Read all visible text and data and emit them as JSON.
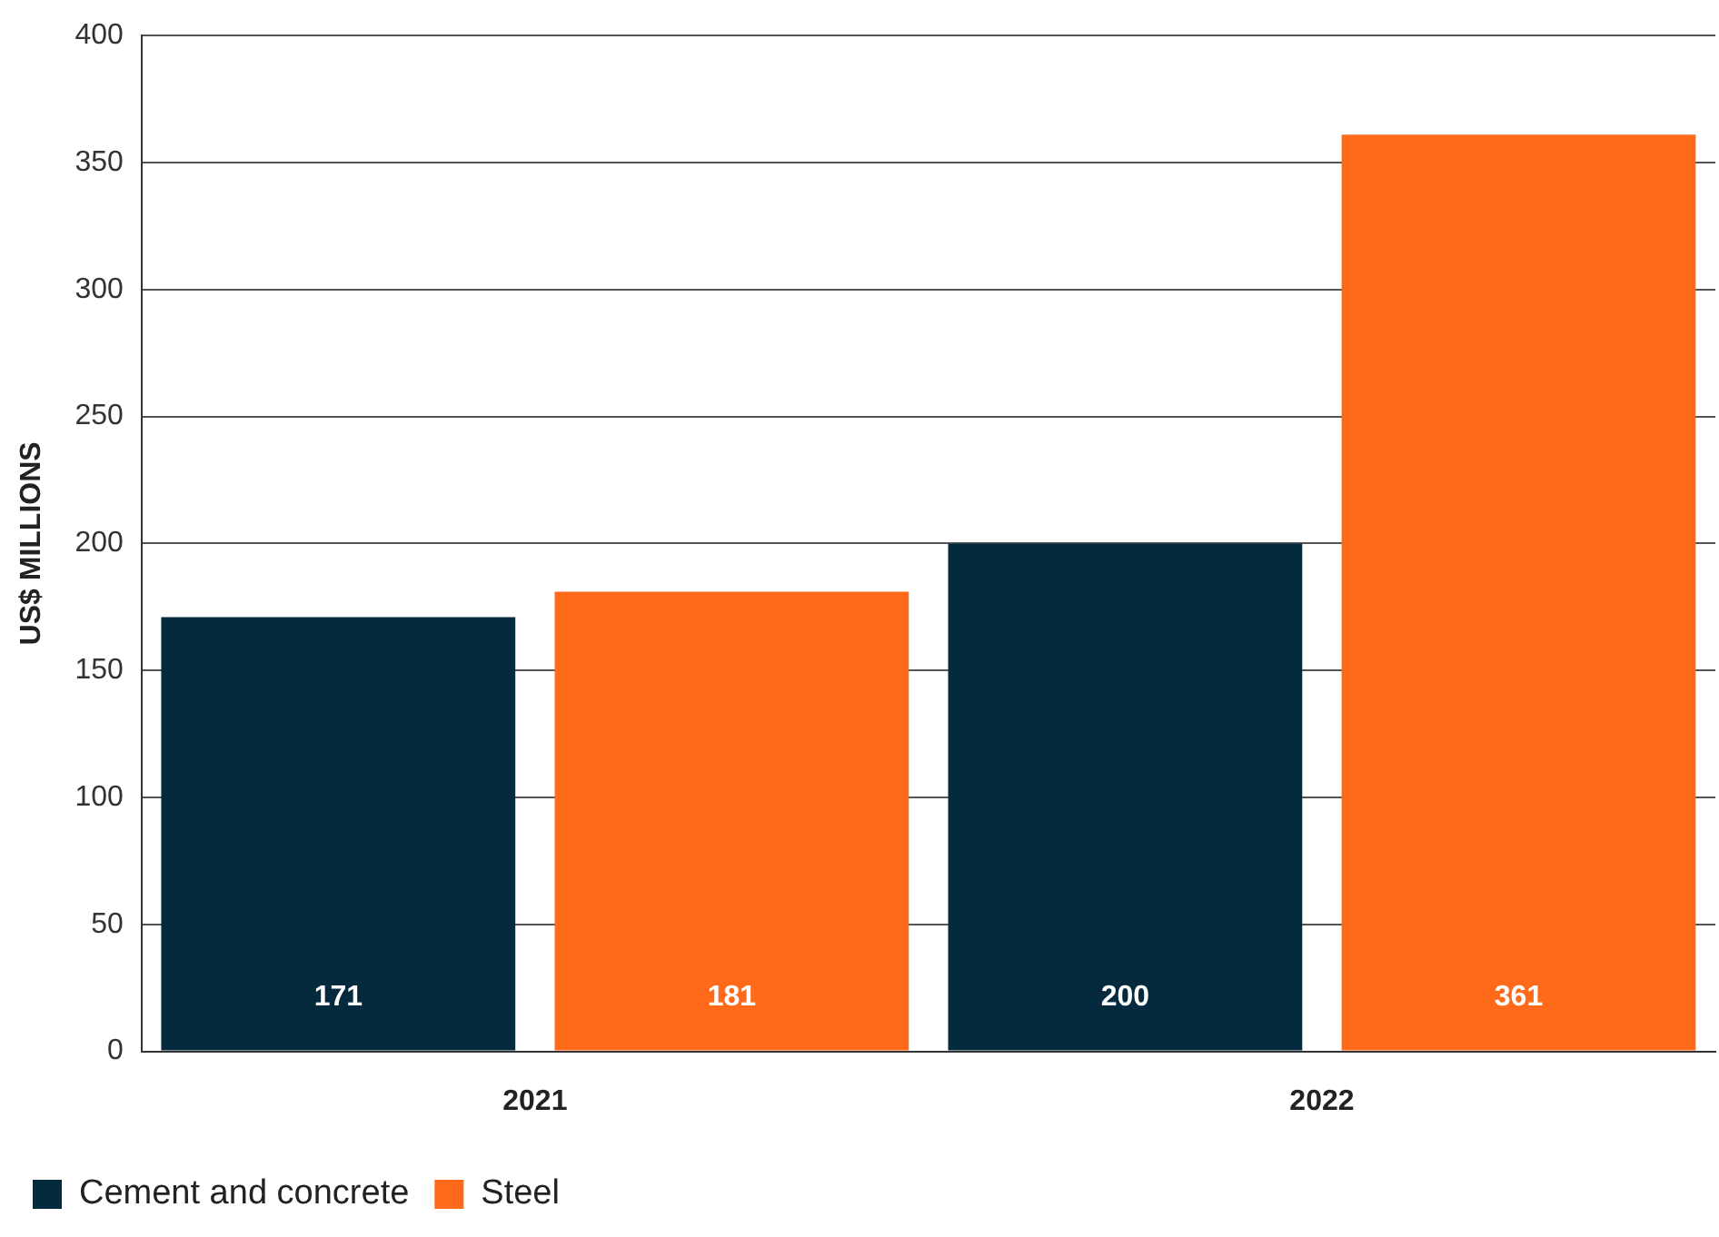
{
  "chart_data": {
    "type": "bar",
    "ylabel": "US$ MILLIONS",
    "categories": [
      "2021",
      "2022"
    ],
    "series": [
      {
        "name": "Cement and concrete",
        "color": "#062a3d",
        "values": [
          171,
          200
        ]
      },
      {
        "name": "Steel",
        "color": "#ff6a1a",
        "values": [
          181,
          361
        ]
      }
    ],
    "ylim": [
      0,
      400
    ],
    "yticks": [
      0,
      50,
      100,
      150,
      200,
      250,
      300,
      350,
      400
    ],
    "grid": "y",
    "legend": "bottom left",
    "data_labels": true
  }
}
